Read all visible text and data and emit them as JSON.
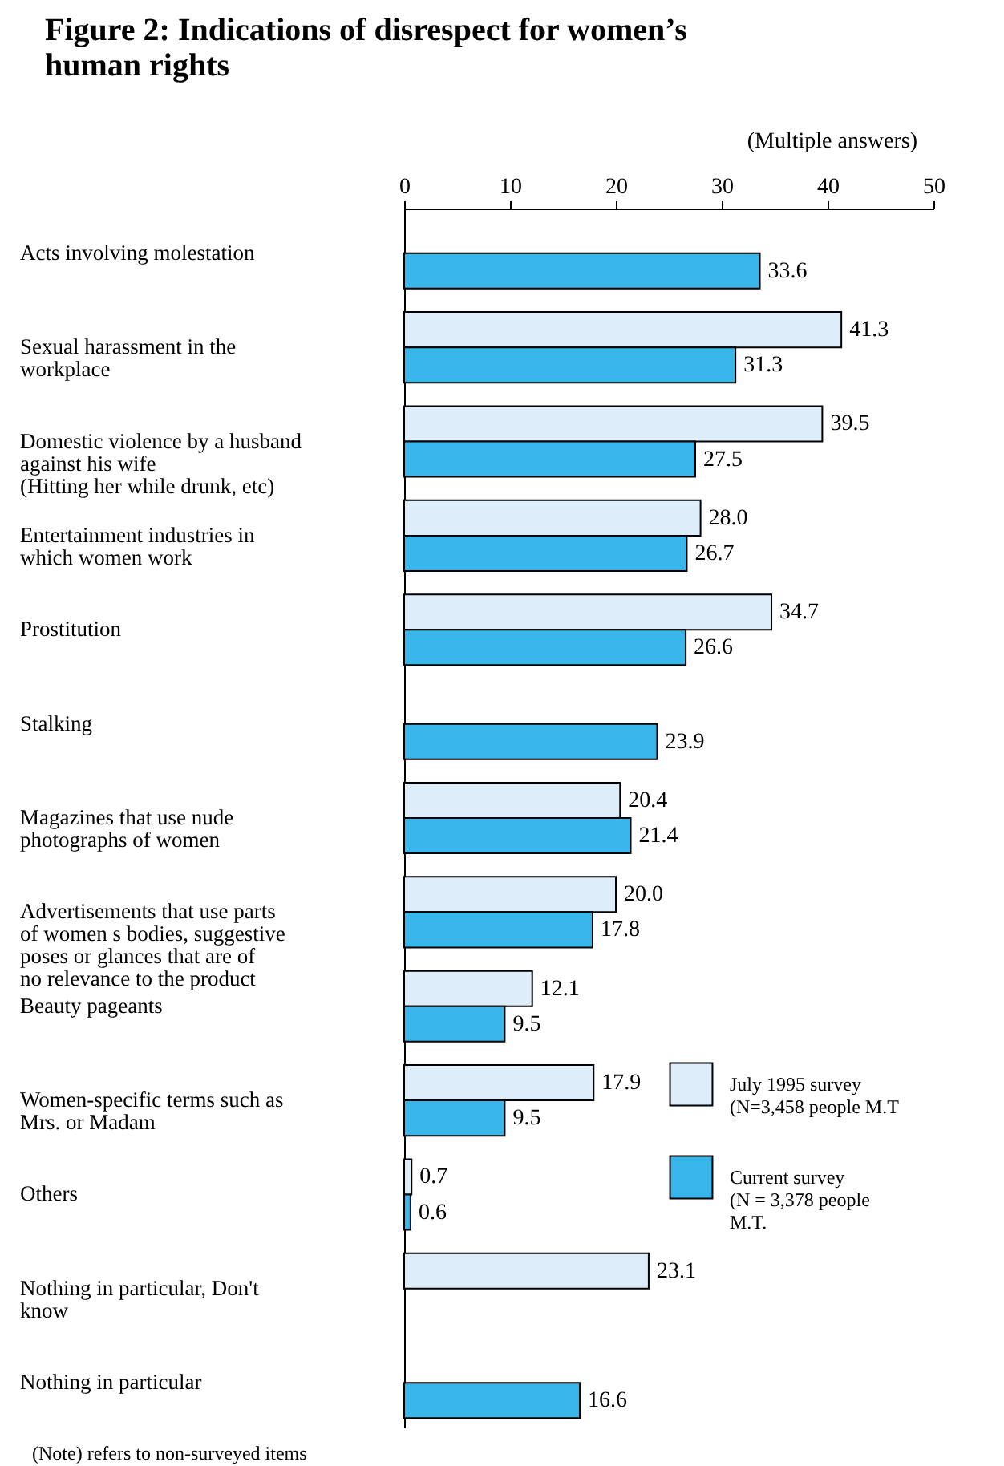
{
  "chart_data": {
    "type": "bar",
    "orientation": "horizontal",
    "title": "Figure 2:  Indications of disrespect for women’s human rights",
    "annotations": [
      "(Multiple answers)",
      "(Note)      refers to non-surveyed items"
    ],
    "categories": [
      "Acts involving molestation",
      "Sexual harassment in the workplace",
      "Domestic violence by a husband against his wife (Hitting her while drunk, etc)",
      "Entertainment industries in which women work",
      "Prostitution",
      "Stalking",
      "Magazines that use nude photographs of women",
      "Advertisements that use parts of women s bodies, suggestive poses or glances that are of no relevance to the product",
      "Beauty pageants",
      "Women-specific terms such as Mrs. or Madam",
      "Others",
      "Nothing in particular, Don't know",
      "Nothing in particular"
    ],
    "series": [
      {
        "name": "July 1995 survey (N=3,458 people  M.T",
        "color": "#ddeefa",
        "values": [
          null,
          41.3,
          39.5,
          28.0,
          34.7,
          null,
          20.4,
          20.0,
          12.1,
          17.9,
          0.7,
          23.1,
          null
        ],
        "value_labels": [
          null,
          "41.3",
          "39.5",
          "28.0",
          "34.7",
          null,
          "20.4",
          "20.0",
          "12.1",
          "17.9",
          "0.7",
          "23.1",
          null
        ]
      },
      {
        "name": "Current survey (N = 3,378 people  M.T.",
        "color": "#38b6ea",
        "values": [
          33.6,
          31.3,
          27.5,
          26.7,
          26.6,
          23.9,
          21.4,
          17.8,
          9.5,
          9.5,
          0.6,
          null,
          16.6
        ],
        "value_labels": [
          "33.6",
          "31.3",
          "27.5",
          "26.7",
          "26.6",
          "23.9",
          "21.4",
          "17.8",
          "9.5",
          "9.5",
          "0.6",
          null,
          "16.6"
        ]
      }
    ],
    "xlim": [
      0,
      50
    ],
    "xticks": [
      0,
      10,
      20,
      30,
      40,
      50
    ],
    "grid": false,
    "legend": "right"
  }
}
